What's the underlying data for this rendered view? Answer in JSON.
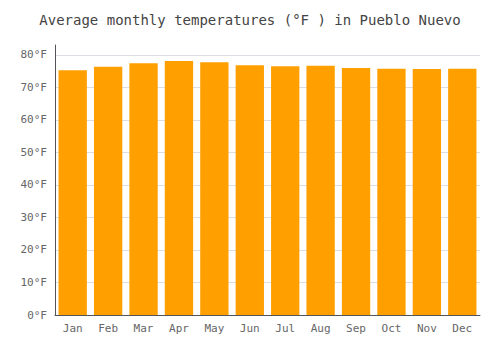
{
  "chart_data": {
    "type": "bar",
    "title": "Average monthly temperatures (°F ) in Pueblo Nuevo",
    "categories": [
      "Jan",
      "Feb",
      "Mar",
      "Apr",
      "May",
      "Jun",
      "Jul",
      "Aug",
      "Sep",
      "Oct",
      "Nov",
      "Dec"
    ],
    "values": [
      75.2,
      76.3,
      77.4,
      78.1,
      77.7,
      76.8,
      76.5,
      76.6,
      75.9,
      75.7,
      75.6,
      75.7
    ],
    "color": "#FFA000",
    "ylim": [
      0,
      83
    ],
    "yticks": [
      {
        "value": 0,
        "label": "0°F"
      },
      {
        "value": 10,
        "label": "10°F"
      },
      {
        "value": 20,
        "label": "20°F"
      },
      {
        "value": 30,
        "label": "30°F"
      },
      {
        "value": 40,
        "label": "40°F"
      },
      {
        "value": 50,
        "label": "50°F"
      },
      {
        "value": 60,
        "label": "60°F"
      },
      {
        "value": 70,
        "label": "70°F"
      },
      {
        "value": 80,
        "label": "80°F"
      }
    ],
    "grid": true
  }
}
